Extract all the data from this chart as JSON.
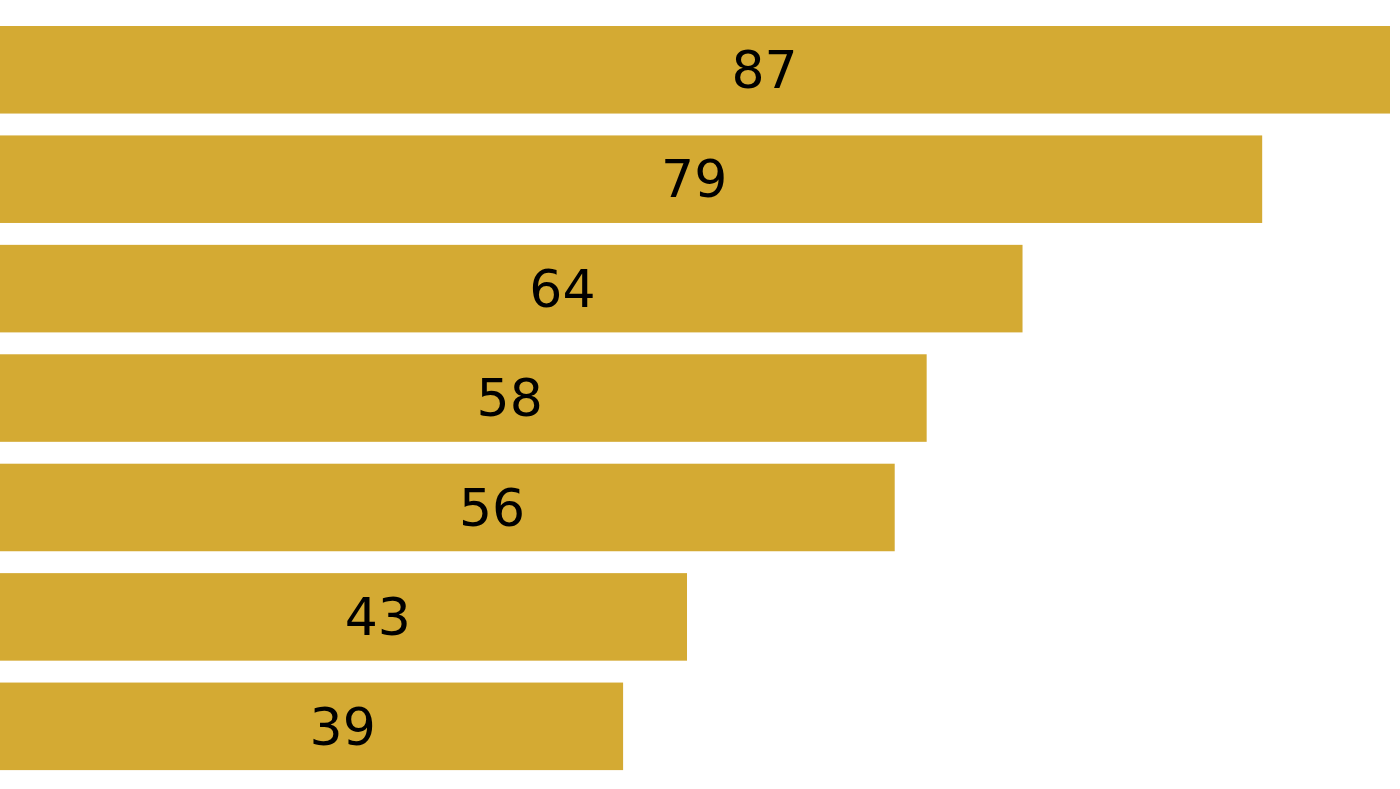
{
  "chart_data": {
    "type": "bar",
    "orientation": "horizontal",
    "categories": [
      null,
      null,
      null,
      null,
      null,
      null,
      null
    ],
    "values": [
      87,
      79,
      64,
      58,
      56,
      43,
      39
    ],
    "color": "#d4aa33",
    "data_labels": true
  }
}
